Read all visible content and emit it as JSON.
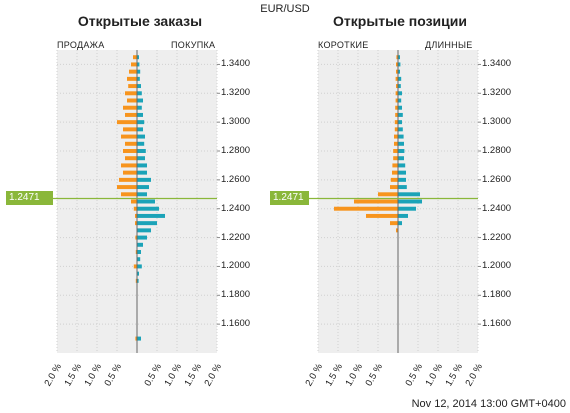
{
  "pair": "EUR/USD",
  "timestamp": "Nov 12, 2014 13:00 GMT+0400",
  "current_price_label": "1.2471",
  "colors": {
    "sell": "#f7941d",
    "buy": "#1ba3b8",
    "marker": "#8ab73a",
    "grid": "#d0d0d0",
    "panel_bg": "#eeeeee"
  },
  "chart_data": [
    {
      "type": "bar",
      "orientation": "horizontal-mirrored",
      "title": "Открытые заказы",
      "left_label": "ПРОДАЖА",
      "right_label": "ПОКУПКА",
      "price_ticks": [
        "1.3400",
        "1.3200",
        "1.3000",
        "1.2800",
        "1.2600",
        "1.2400",
        "1.2200",
        "1.2000",
        "1.1800",
        "1.1600"
      ],
      "pct_ticks": [
        "2.0 %",
        "1.5 %",
        "1.0 %",
        "0.5 %",
        "",
        "0.5 %",
        "1.0 %",
        "1.5 %",
        "2.0 %"
      ],
      "price_range": [
        1.14,
        1.35
      ],
      "current_price": 1.2471,
      "x_max_pct": 2.0,
      "sell": [
        [
          1.345,
          0.1
        ],
        [
          1.34,
          0.15
        ],
        [
          1.335,
          0.2
        ],
        [
          1.33,
          0.25
        ],
        [
          1.325,
          0.22
        ],
        [
          1.32,
          0.3
        ],
        [
          1.315,
          0.25
        ],
        [
          1.31,
          0.35
        ],
        [
          1.305,
          0.3
        ],
        [
          1.3,
          0.5
        ],
        [
          1.295,
          0.35
        ],
        [
          1.29,
          0.4
        ],
        [
          1.285,
          0.3
        ],
        [
          1.28,
          0.35
        ],
        [
          1.275,
          0.3
        ],
        [
          1.27,
          0.4
        ],
        [
          1.265,
          0.35
        ],
        [
          1.26,
          0.45
        ],
        [
          1.255,
          0.5
        ],
        [
          1.25,
          0.4
        ],
        [
          1.245,
          0.15
        ],
        [
          1.24,
          0.08
        ],
        [
          1.235,
          0.05
        ],
        [
          1.23,
          0.05
        ],
        [
          1.22,
          0.04
        ],
        [
          1.21,
          0.03
        ],
        [
          1.2,
          0.08
        ],
        [
          1.19,
          0.03
        ],
        [
          1.15,
          0.04
        ]
      ],
      "buy": [
        [
          1.345,
          0.05
        ],
        [
          1.34,
          0.06
        ],
        [
          1.335,
          0.08
        ],
        [
          1.33,
          0.07
        ],
        [
          1.325,
          0.1
        ],
        [
          1.32,
          0.12
        ],
        [
          1.315,
          0.15
        ],
        [
          1.31,
          0.12
        ],
        [
          1.305,
          0.15
        ],
        [
          1.3,
          0.18
        ],
        [
          1.295,
          0.15
        ],
        [
          1.29,
          0.2
        ],
        [
          1.285,
          0.18
        ],
        [
          1.28,
          0.22
        ],
        [
          1.275,
          0.2
        ],
        [
          1.27,
          0.25
        ],
        [
          1.265,
          0.25
        ],
        [
          1.26,
          0.35
        ],
        [
          1.255,
          0.3
        ],
        [
          1.25,
          0.25
        ],
        [
          1.245,
          0.45
        ],
        [
          1.24,
          0.55
        ],
        [
          1.235,
          0.7
        ],
        [
          1.23,
          0.5
        ],
        [
          1.225,
          0.35
        ],
        [
          1.22,
          0.25
        ],
        [
          1.215,
          0.15
        ],
        [
          1.21,
          0.1
        ],
        [
          1.205,
          0.08
        ],
        [
          1.2,
          0.12
        ],
        [
          1.195,
          0.05
        ],
        [
          1.19,
          0.04
        ],
        [
          1.15,
          0.1
        ]
      ]
    },
    {
      "type": "bar",
      "orientation": "horizontal-mirrored",
      "title": "Открытые позиции",
      "left_label": "КОРОТКИЕ",
      "right_label": "ДЛИННЫЕ",
      "price_ticks": [
        "1.3400",
        "1.3200",
        "1.3000",
        "1.2800",
        "1.2600",
        "1.2400",
        "1.2200",
        "1.2000",
        "1.1800",
        "1.1600"
      ],
      "pct_ticks": [
        "2.0 %",
        "1.5 %",
        "1.0 %",
        "0.5 %",
        "",
        "0.5 %",
        "1.0 %",
        "1.5 %",
        "2.0 %"
      ],
      "price_range": [
        1.14,
        1.35
      ],
      "current_price": 1.2471,
      "x_max_pct": 2.0,
      "short": [
        [
          1.345,
          0.04
        ],
        [
          1.34,
          0.05
        ],
        [
          1.335,
          0.05
        ],
        [
          1.33,
          0.06
        ],
        [
          1.325,
          0.05
        ],
        [
          1.32,
          0.06
        ],
        [
          1.315,
          0.06
        ],
        [
          1.31,
          0.07
        ],
        [
          1.305,
          0.07
        ],
        [
          1.3,
          0.08
        ],
        [
          1.295,
          0.08
        ],
        [
          1.29,
          0.1
        ],
        [
          1.285,
          0.1
        ],
        [
          1.28,
          0.12
        ],
        [
          1.275,
          0.12
        ],
        [
          1.27,
          0.14
        ],
        [
          1.265,
          0.15
        ],
        [
          1.26,
          0.18
        ],
        [
          1.255,
          0.2
        ],
        [
          1.25,
          0.5
        ],
        [
          1.245,
          1.1
        ],
        [
          1.24,
          1.6
        ],
        [
          1.235,
          0.8
        ],
        [
          1.23,
          0.2
        ],
        [
          1.225,
          0.05
        ]
      ],
      "long": [
        [
          1.345,
          0.05
        ],
        [
          1.34,
          0.06
        ],
        [
          1.335,
          0.05
        ],
        [
          1.33,
          0.08
        ],
        [
          1.325,
          0.07
        ],
        [
          1.32,
          0.1
        ],
        [
          1.315,
          0.08
        ],
        [
          1.31,
          0.1
        ],
        [
          1.305,
          0.12
        ],
        [
          1.3,
          0.1
        ],
        [
          1.295,
          0.12
        ],
        [
          1.29,
          0.14
        ],
        [
          1.285,
          0.15
        ],
        [
          1.28,
          0.16
        ],
        [
          1.275,
          0.15
        ],
        [
          1.27,
          0.18
        ],
        [
          1.265,
          0.2
        ],
        [
          1.26,
          0.2
        ],
        [
          1.255,
          0.22
        ],
        [
          1.25,
          0.55
        ],
        [
          1.245,
          0.6
        ],
        [
          1.24,
          0.45
        ],
        [
          1.235,
          0.25
        ],
        [
          1.23,
          0.1
        ]
      ]
    }
  ]
}
